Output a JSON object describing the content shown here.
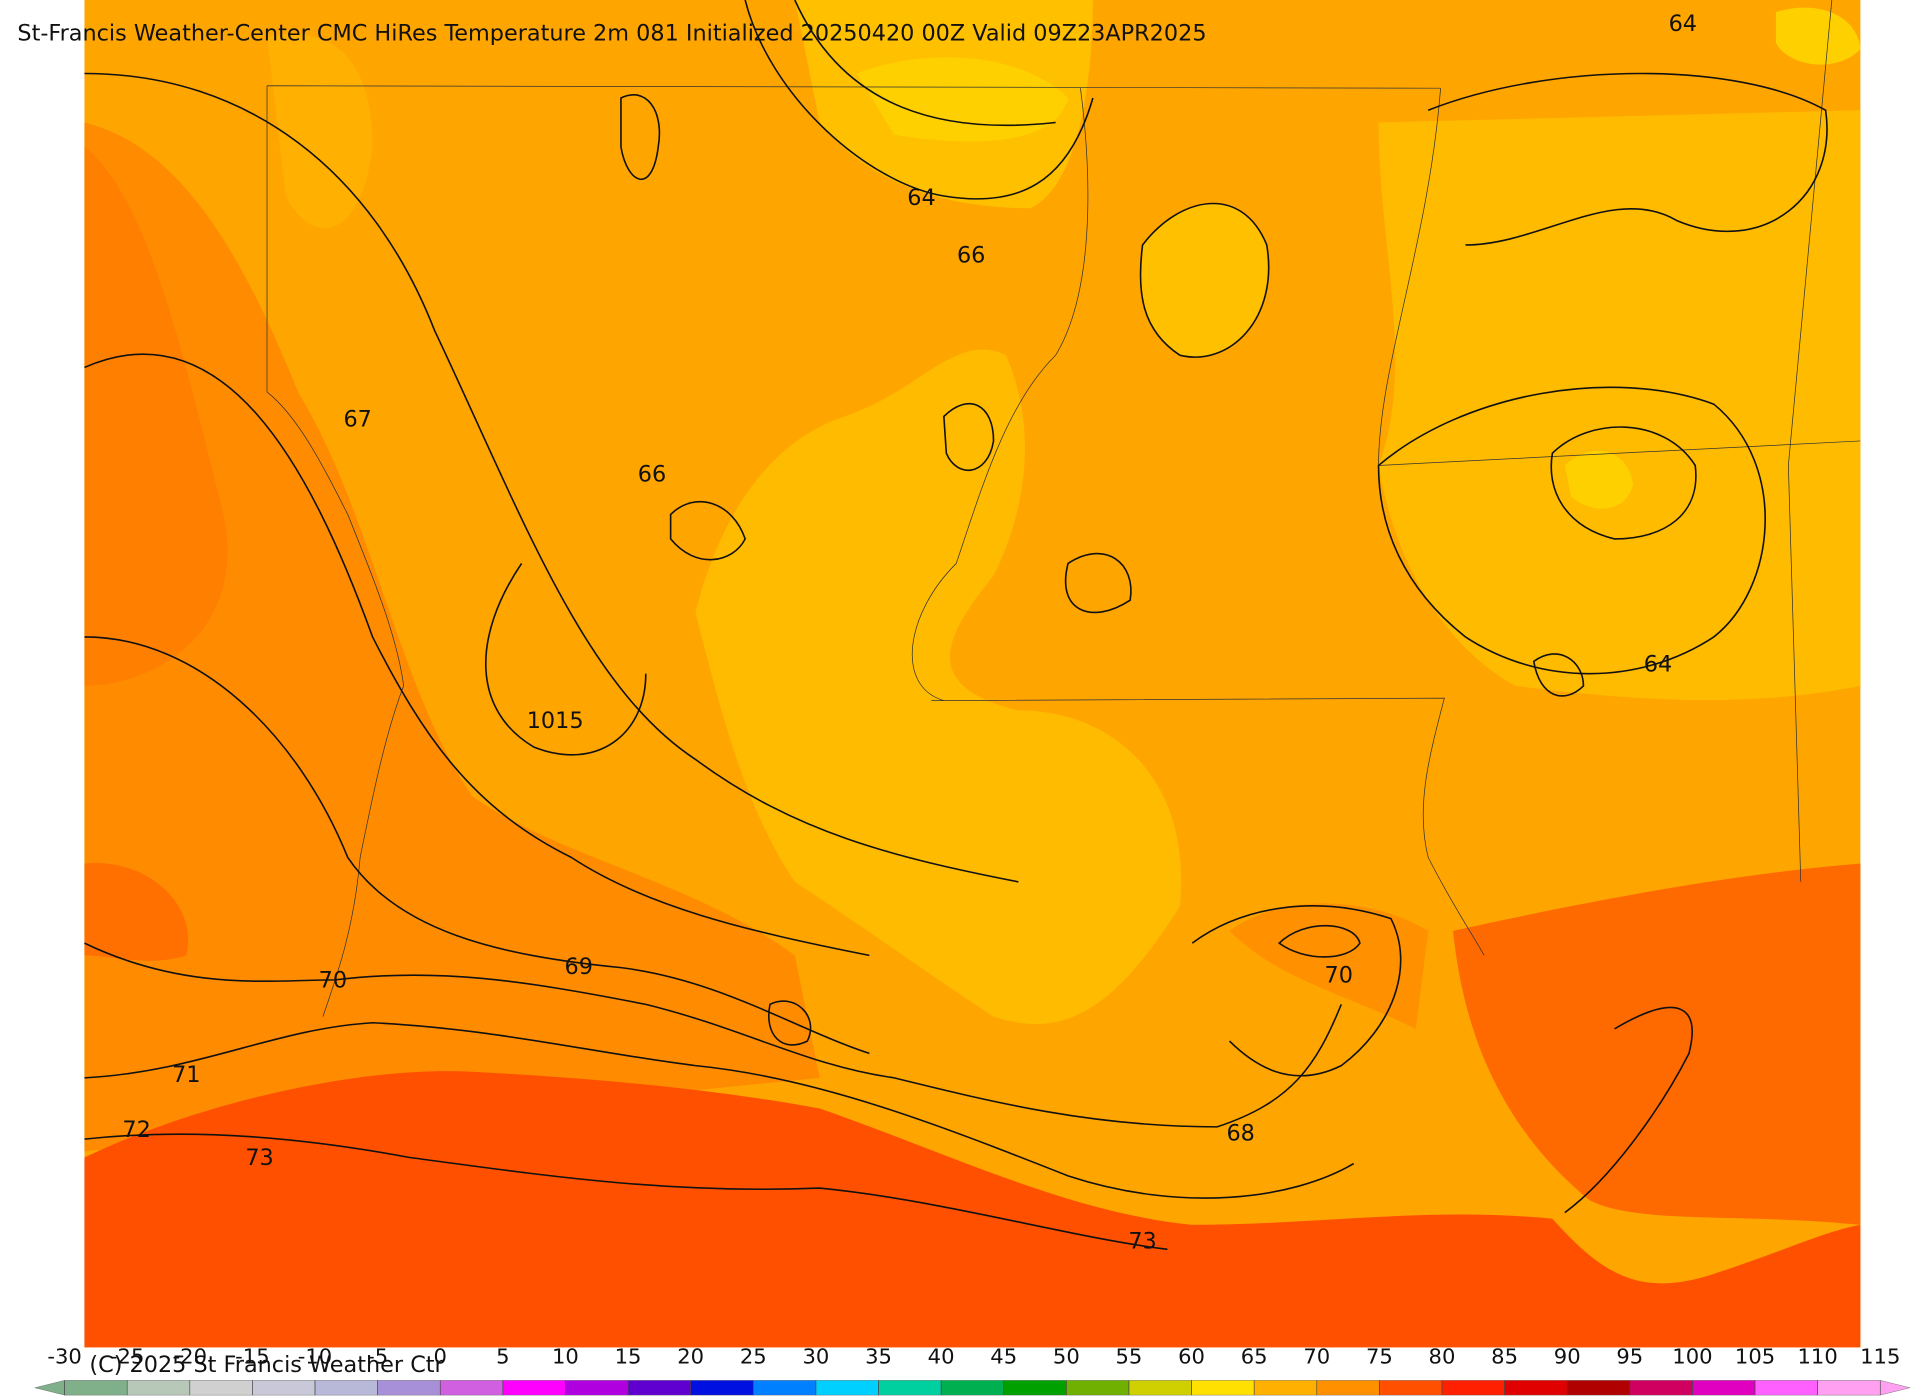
{
  "header": {
    "title": "St-Francis Weather-Center CMC HiRes Temperature 2m  081 Initialized 20250420 00Z Valid 09Z23APR2025"
  },
  "contour_labels": [
    "64",
    "64",
    "66",
    "67",
    "66",
    "1015",
    "69",
    "70",
    "71",
    "72",
    "73",
    "70",
    "68",
    "73",
    "64"
  ],
  "colorbar": {
    "ticks": [
      -30,
      -25,
      -20,
      -15,
      -10,
      -5,
      0,
      5,
      10,
      15,
      20,
      25,
      30,
      35,
      40,
      45,
      50,
      55,
      60,
      65,
      70,
      75,
      80,
      85,
      90,
      95,
      100,
      105,
      110,
      115
    ],
    "colors": [
      "#7fb08a",
      "#b8c8b8",
      "#d0d0d0",
      "#c8c8d8",
      "#b8b8d8",
      "#a890d8",
      "#d060e0",
      "#ff00ff",
      "#b000e0",
      "#6000d0",
      "#0010e0",
      "#0080ff",
      "#00d0ff",
      "#00d0a0",
      "#00b050",
      "#00a000",
      "#70b000",
      "#d0d000",
      "#ffe000",
      "#ffb000",
      "#ff9000",
      "#ff5000",
      "#ff2000",
      "#e00000",
      "#b00000",
      "#d00060",
      "#e000c0",
      "#ff60ff",
      "#ffa0f0"
    ]
  },
  "footer": {
    "copyright": "(C) 2025 St Francis Weather Ctr"
  }
}
